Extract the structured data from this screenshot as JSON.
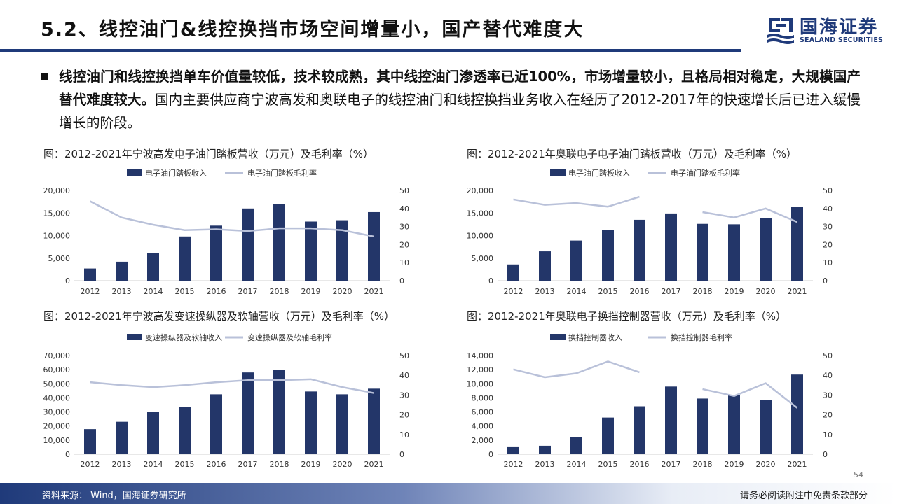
{
  "header": {
    "title": "5.2、线控油门&线控换挡市场空间增量小，国产替代难度大",
    "logo_cn": "国海证券",
    "logo_en": "SEALAND SECURITIES"
  },
  "bullet": {
    "bold": "线控油门和线控换挡单车价值量较低，技术较成熟，其中线控油门渗透率已近100%，市场增量较小，且格局相对稳定，大规模国产替代难度较大。",
    "normal": "国内主要供应商宁波高发和奥联电子的线控油门和线控换挡业务收入在经历了2012-2017年的快速增长后已进入缓慢增长的阶段。"
  },
  "charts": [
    {
      "title": "图：2012-2021年宁波高发电子油门踏板营收（万元）及毛利率（%）",
      "legend_bar": "电子油门踏板收入",
      "legend_line": "电子油门踏板毛利率"
    },
    {
      "title": "图：2012-2021年奥联电子电子油门踏板营收（万元）及毛利率（%）",
      "legend_bar": "电子油门踏板收入",
      "legend_line": "电子油门踏板毛利率"
    },
    {
      "title": "图：2012-2021年宁波高发变速操纵器及软轴营收（万元）及毛利率（%）",
      "legend_bar": "变速操纵器及软轴收入",
      "legend_line": "变速操纵器及软轴毛利率"
    },
    {
      "title": "图：2012-2021年奥联电子换挡控制器营收（万元）及毛利率（%）",
      "legend_bar": "换挡控制器收入",
      "legend_line": "换挡控制器毛利率"
    }
  ],
  "chart_data": [
    {
      "type": "bar",
      "categories": [
        "2012",
        "2013",
        "2014",
        "2015",
        "2016",
        "2017",
        "2018",
        "2019",
        "2020",
        "2021"
      ],
      "series": [
        {
          "name": "电子油门踏板收入",
          "type": "bar",
          "axis": "left",
          "values": [
            2700,
            4200,
            6200,
            9800,
            12200,
            16000,
            16900,
            13100,
            13400,
            15200
          ]
        },
        {
          "name": "电子油门踏板毛利率",
          "type": "line",
          "axis": "right",
          "values": [
            44,
            35,
            31,
            28,
            28.5,
            27.5,
            29,
            29,
            28,
            24.5
          ]
        }
      ],
      "ylim_left": [
        0,
        20000
      ],
      "yticks_left": [
        "0",
        "5,000",
        "10,000",
        "15,000",
        "20,000"
      ],
      "ylim_right": [
        0,
        50
      ],
      "yticks_right": [
        "0",
        "10",
        "20",
        "30",
        "40",
        "50"
      ],
      "legend": "top"
    },
    {
      "type": "bar",
      "categories": [
        "2012",
        "2013",
        "2014",
        "2015",
        "2016",
        "2017",
        "2018",
        "2019",
        "2020",
        "2021"
      ],
      "series": [
        {
          "name": "电子油门踏板收入",
          "type": "bar",
          "axis": "left",
          "values": [
            3600,
            6500,
            8900,
            11300,
            13500,
            14900,
            12600,
            12500,
            13900,
            16400
          ]
        },
        {
          "name": "电子油门踏板毛利率",
          "type": "line",
          "axis": "right",
          "values": [
            45,
            42,
            43,
            41,
            46.5,
            null,
            38,
            35,
            40,
            32.5
          ]
        }
      ],
      "ylim_left": [
        0,
        20000
      ],
      "yticks_left": [
        "0",
        "5,000",
        "10,000",
        "15,000",
        "20,000"
      ],
      "ylim_right": [
        0,
        50
      ],
      "yticks_right": [
        "0",
        "10",
        "20",
        "30",
        "40",
        "50"
      ],
      "legend": "top"
    },
    {
      "type": "bar",
      "categories": [
        "2012",
        "2013",
        "2014",
        "2015",
        "2016",
        "2017",
        "2018",
        "2019",
        "2020",
        "2021"
      ],
      "series": [
        {
          "name": "变速操纵器及软轴收入",
          "type": "bar",
          "axis": "left",
          "values": [
            17800,
            23000,
            29800,
            33500,
            42500,
            58000,
            60000,
            44500,
            42500,
            46500
          ]
        },
        {
          "name": "变速操纵器及软轴毛利率",
          "type": "line",
          "axis": "right",
          "values": [
            36.5,
            35,
            34,
            35,
            36.5,
            37.5,
            37.5,
            38,
            34,
            31
          ]
        }
      ],
      "ylim_left": [
        0,
        70000
      ],
      "yticks_left": [
        "0",
        "10,000",
        "20,000",
        "30,000",
        "40,000",
        "50,000",
        "60,000",
        "70,000"
      ],
      "ylim_right": [
        0,
        50
      ],
      "yticks_right": [
        "0",
        "10",
        "20",
        "30",
        "40",
        "50"
      ],
      "legend": "top"
    },
    {
      "type": "bar",
      "categories": [
        "2012",
        "2013",
        "2014",
        "2015",
        "2016",
        "2017",
        "2018",
        "2019",
        "2020",
        "2021"
      ],
      "series": [
        {
          "name": "换挡控制器收入",
          "type": "bar",
          "axis": "left",
          "values": [
            1100,
            1200,
            2400,
            5200,
            6800,
            9600,
            7900,
            8400,
            7700,
            11300
          ]
        },
        {
          "name": "换挡控制器毛利率",
          "type": "line",
          "axis": "right",
          "values": [
            43,
            39,
            41,
            47,
            41.5,
            null,
            33,
            29.5,
            36,
            23.5
          ]
        }
      ],
      "ylim_left": [
        0,
        14000
      ],
      "yticks_left": [
        "0",
        "2,000",
        "4,000",
        "6,000",
        "8,000",
        "10,000",
        "12,000",
        "14,000"
      ],
      "ylim_right": [
        0,
        50
      ],
      "yticks_right": [
        "0",
        "10",
        "20",
        "30",
        "40",
        "50"
      ],
      "legend": "top"
    }
  ],
  "footer": {
    "source": "资料来源： Wind，国海证券研究所",
    "disclaimer": "请务必阅读附注中免责条款部分",
    "page": "54"
  },
  "colors": {
    "brand": "#1f3a7a",
    "bar": "#233669",
    "line": "#b9c1d9"
  }
}
